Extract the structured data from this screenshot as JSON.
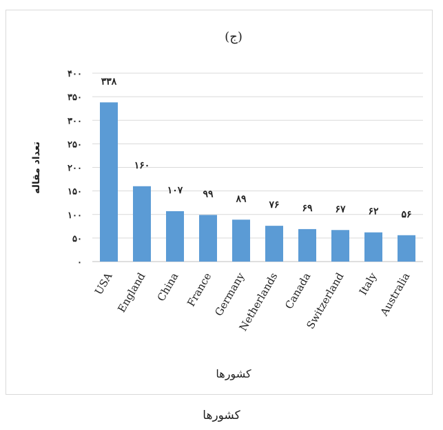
{
  "caption": "کشورها",
  "chart_data": {
    "type": "bar",
    "title": "(ج)",
    "xlabel": "کشورها",
    "ylabel": "تعداد مقاله",
    "categories": [
      "USA",
      "England",
      "China",
      "France",
      "Germany",
      "Netherlands",
      "Canada",
      "Switzerland",
      "Italy",
      "Australia"
    ],
    "values": [
      338,
      160,
      107,
      99,
      89,
      76,
      69,
      67,
      62,
      56
    ],
    "value_labels": [
      "۳۳۸",
      "۱۶۰",
      "۱۰۷",
      "۹۹",
      "۸۹",
      "۷۶",
      "۶۹",
      "۶۷",
      "۶۲",
      "۵۶"
    ],
    "ylim": [
      0,
      400
    ],
    "yticks": [
      0,
      50,
      100,
      150,
      200,
      250,
      300,
      350,
      400
    ],
    "ytick_labels": [
      "۰",
      "۵۰",
      "۱۰۰",
      "۱۵۰",
      "۲۰۰",
      "۲۵۰",
      "۳۰۰",
      "۳۵۰",
      "۴۰۰"
    ],
    "grid": true,
    "legend": "none",
    "colors": {
      "bar": "#5b9bd5",
      "grid": "#d9d9d9"
    }
  }
}
